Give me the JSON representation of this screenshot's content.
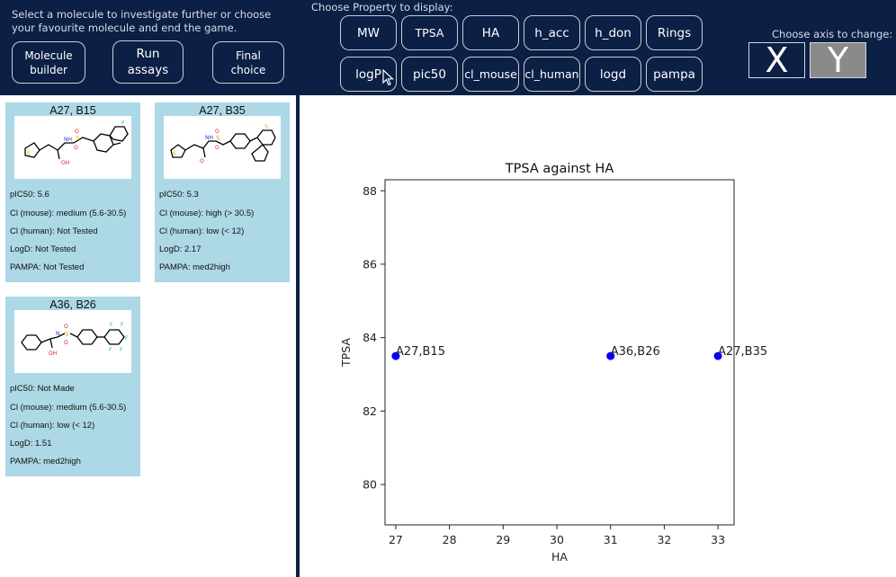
{
  "header": {
    "intro_text": "Select a molecule to investigate further or choose your favourite molecule and end the game.",
    "actions": [
      "Molecule\nbuilder",
      "Run\nassays",
      "Final\nchoice"
    ],
    "property_label": "Choose Property to display:",
    "properties_row1": [
      "MW",
      "TPSA",
      "HA",
      "h_acc",
      "h_don",
      "Rings"
    ],
    "properties_row2": [
      "logP",
      "pic50",
      "cl_mouse",
      "cl_human",
      "logd",
      "pampa"
    ],
    "axis_label": "Choose axis to change:",
    "axis_x": "X",
    "axis_y": "Y",
    "selected_axis": "Y"
  },
  "molecules": [
    {
      "name": "A27, B15",
      "props": [
        "pIC50: 5.6",
        "Cl (mouse): medium (5.6-30.5)",
        "Cl (human): Not Tested",
        "LogD: Not Tested",
        "PAMPA: Not Tested"
      ]
    },
    {
      "name": "A27, B35",
      "props": [
        "pIC50: 5.3",
        "Cl (mouse): high (> 30.5)",
        "Cl (human): low (< 12)",
        "LogD: 2.17",
        "PAMPA: med2high"
      ]
    },
    {
      "name": "A36, B26",
      "props": [
        "pIC50: Not Made",
        "Cl (mouse): medium (5.6-30.5)",
        "Cl (human): low (< 12)",
        "LogD: 1.51",
        "PAMPA: med2high"
      ]
    }
  ],
  "chart_data": {
    "type": "scatter",
    "title": "TPSA against HA",
    "xlabel": "HA",
    "ylabel": "TPSA",
    "xlim": [
      26.8,
      33.3
    ],
    "ylim": [
      78.9,
      88.3
    ],
    "xticks": [
      27,
      28,
      29,
      30,
      31,
      32,
      33
    ],
    "yticks": [
      80,
      82,
      84,
      86,
      88
    ],
    "point_color": "#0000ff",
    "points": [
      {
        "label": "A27,B15",
        "x": 27,
        "y": 83.5
      },
      {
        "label": "A36,B26",
        "x": 31,
        "y": 83.5
      },
      {
        "label": "A27,B35",
        "x": 33,
        "y": 83.5
      }
    ]
  }
}
